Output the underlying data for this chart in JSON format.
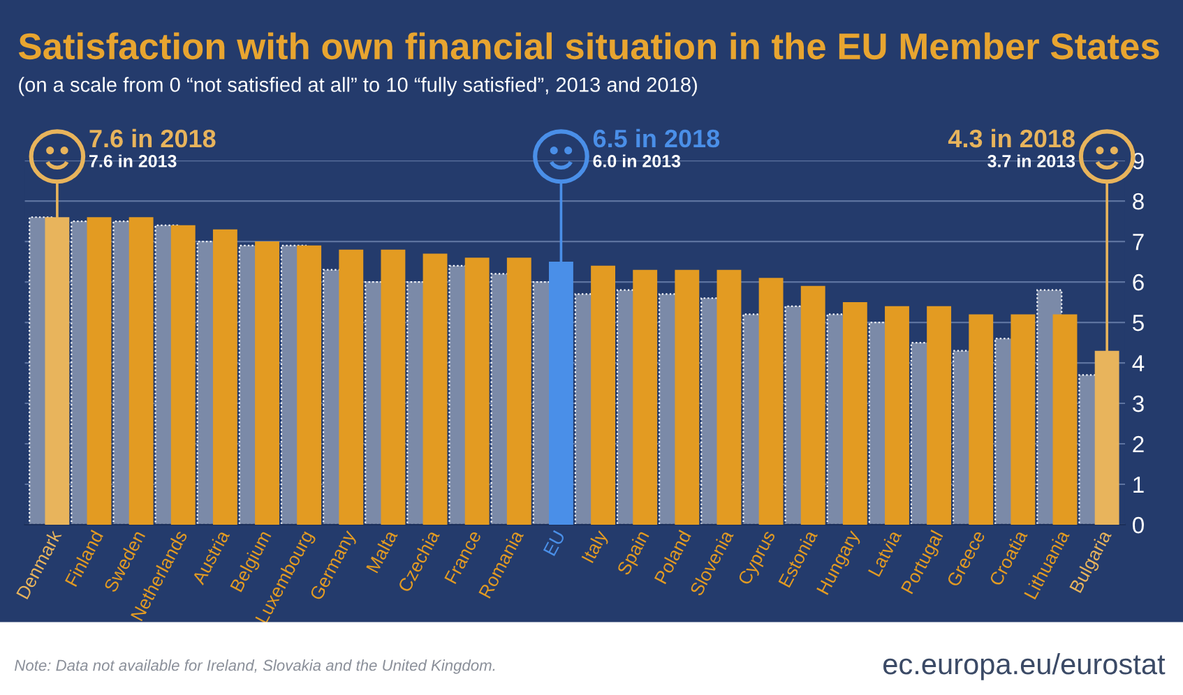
{
  "chart_data": {
    "type": "bar",
    "title": "Satisfaction with own financial situation in the EU Member States",
    "subtitle": "(on a scale from 0 “not satisfied at all” to 10 “fully satisfied”, 2013 and 2018)",
    "categories": [
      "Denmark",
      "Finland",
      "Sweden",
      "Netherlands",
      "Austria",
      "Belgium",
      "Luxembourg",
      "Germany",
      "Malta",
      "Czechia",
      "France",
      "Romania",
      "EU",
      "Italy",
      "Spain",
      "Poland",
      "Slovenia",
      "Cyprus",
      "Estonia",
      "Hungary",
      "Latvia",
      "Portugal",
      "Greece",
      "Croatia",
      "Lithuania",
      "Bulgaria"
    ],
    "series": [
      {
        "color": "#7b8aa8",
        "values": [
          7.6,
          7.5,
          7.5,
          7.4,
          7.0,
          6.9,
          6.9,
          6.3,
          6.0,
          6.0,
          6.4,
          6.2,
          6.0,
          5.7,
          5.8,
          5.7,
          5.6,
          5.2,
          5.4,
          5.2,
          5.0,
          4.5,
          4.3,
          4.6,
          5.8,
          3.7
        ]
      },
      {
        "colors": [
          "#e8b45c",
          "#e39b22",
          "#e39b22",
          "#e39b22",
          "#e39b22",
          "#e39b22",
          "#e39b22",
          "#e39b22",
          "#e39b22",
          "#e39b22",
          "#e39b22",
          "#e39b22",
          "#4a8fe8",
          "#e39b22",
          "#e39b22",
          "#e39b22",
          "#e39b22",
          "#e39b22",
          "#e39b22",
          "#e39b22",
          "#e39b22",
          "#e39b22",
          "#e39b22",
          "#e39b22",
          "#e39b22",
          "#e8b45c"
        ],
        "values": [
          7.6,
          7.6,
          7.6,
          7.4,
          7.3,
          7.0,
          6.9,
          6.8,
          6.8,
          6.7,
          6.6,
          6.6,
          6.5,
          6.4,
          6.3,
          6.3,
          6.3,
          6.1,
          5.9,
          5.5,
          5.4,
          5.4,
          5.2,
          5.2,
          5.2,
          4.3
        ]
      }
    ],
    "ylim": [
      0,
      9
    ],
    "yticks": [
      0,
      1,
      2,
      3,
      4,
      5,
      6,
      7,
      8,
      9
    ],
    "grid": "y",
    "legend": false,
    "annotations": [
      "7.6 in 2018",
      "7.6 in 2013",
      "6.5 in 2018",
      "6.0 in 2013",
      "4.3 in 2018",
      "3.7 in 2013",
      "Note: Data not available for Ireland, Slovakia and the United Kingdom.",
      "ec.europa.eu/eurostat"
    ]
  }
}
